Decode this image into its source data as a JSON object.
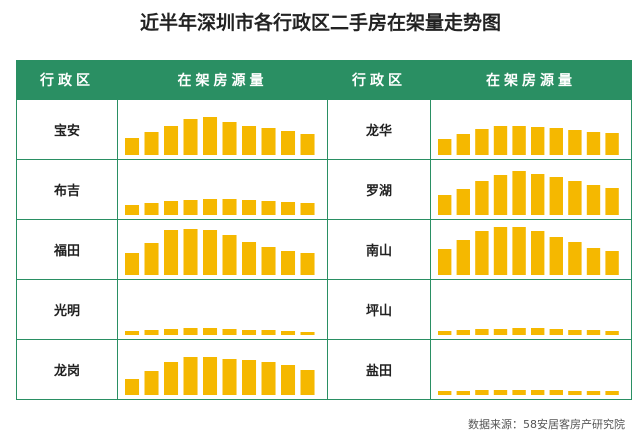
{
  "title": "近半年深圳市各行政区二手房在架量走势图",
  "table": {
    "headers": [
      "行政区",
      "在架房源量",
      "行政区",
      "在架房源量"
    ]
  },
  "chart_data": [
    {
      "type": "bar",
      "title": "宝安",
      "color": "#f5b800",
      "values": [
        17,
        23,
        29,
        36,
        38,
        33,
        29,
        27,
        24,
        21
      ]
    },
    {
      "type": "bar",
      "title": "龙华",
      "color": "#f5b800",
      "values": [
        16,
        21,
        26,
        29,
        29,
        28,
        27,
        25,
        23,
        22
      ]
    },
    {
      "type": "bar",
      "title": "布吉",
      "color": "#f5b800",
      "values": [
        10,
        12,
        14,
        15,
        16,
        16,
        15,
        14,
        13,
        12
      ]
    },
    {
      "type": "bar",
      "title": "罗湖",
      "color": "#f5b800",
      "values": [
        20,
        26,
        34,
        40,
        44,
        41,
        38,
        34,
        30,
        27
      ]
    },
    {
      "type": "bar",
      "title": "福田",
      "color": "#f5b800",
      "values": [
        22,
        32,
        45,
        46,
        45,
        40,
        33,
        28,
        24,
        22
      ]
    },
    {
      "type": "bar",
      "title": "南山",
      "color": "#f5b800",
      "values": [
        26,
        35,
        44,
        48,
        48,
        44,
        38,
        33,
        27,
        24
      ]
    },
    {
      "type": "bar",
      "title": "光明",
      "color": "#f5b800",
      "values": [
        4,
        5,
        6,
        7,
        7,
        6,
        5,
        5,
        4,
        3
      ]
    },
    {
      "type": "bar",
      "title": "坪山",
      "color": "#f5b800",
      "values": [
        4,
        5,
        6,
        6,
        7,
        7,
        6,
        5,
        5,
        4
      ]
    },
    {
      "type": "bar",
      "title": "龙岗",
      "color": "#f5b800",
      "values": [
        16,
        24,
        33,
        38,
        38,
        36,
        35,
        33,
        30,
        25
      ]
    },
    {
      "type": "bar",
      "title": "盐田",
      "color": "#f5b800",
      "values": [
        4,
        4,
        5,
        5,
        5,
        5,
        5,
        4,
        4,
        4
      ]
    }
  ],
  "source": "数据来源：58安居客房产研究院"
}
